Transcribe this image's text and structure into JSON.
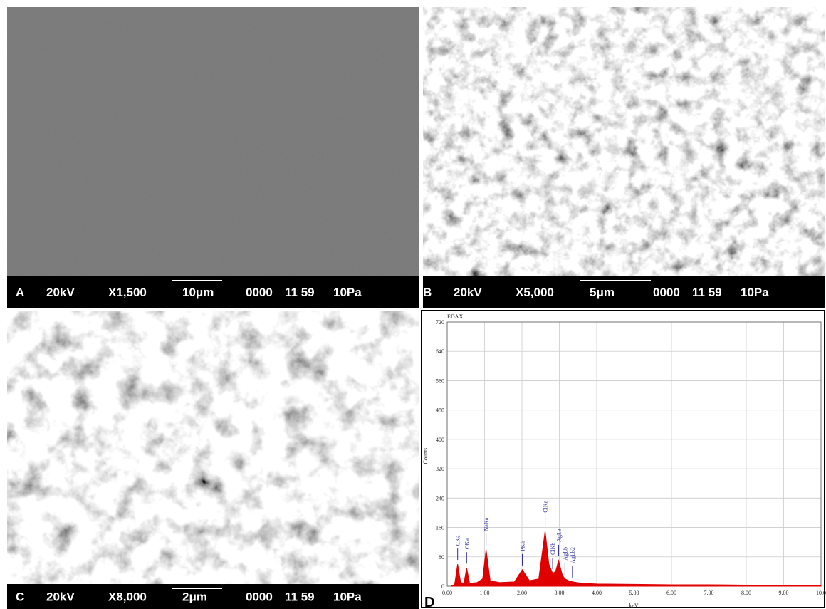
{
  "sem_panels": [
    {
      "label": "A",
      "voltage": "20kV",
      "magnification": "X1,500",
      "scale_bar": "10μm",
      "code": "0000",
      "time": "11 59",
      "pressure": "10Pa"
    },
    {
      "label": "B",
      "voltage": "20kV",
      "magnification": "X5,000",
      "scale_bar": "5μm",
      "code": "0000",
      "time": "11 59",
      "pressure": "10Pa"
    },
    {
      "label": "C",
      "voltage": "20kV",
      "magnification": "X8,000",
      "scale_bar": "2μm",
      "code": "0000",
      "time": "11 59",
      "pressure": "10Pa"
    }
  ],
  "panel_d_label": "D",
  "chart_data": {
    "type": "spectrum",
    "title": "EDAX",
    "xlabel": "keV",
    "ylabel": "Counts",
    "color": "#e00000",
    "label_color": "#2a2aa0",
    "grid": true,
    "xlim": [
      0,
      10
    ],
    "ylim": [
      0,
      720
    ],
    "xticks": [
      {
        "value": 0,
        "label": "0.00"
      },
      {
        "value": 1,
        "label": "1.00"
      },
      {
        "value": 2,
        "label": "2.00"
      },
      {
        "value": 3,
        "label": "3.00"
      },
      {
        "value": 4,
        "label": "4.00"
      },
      {
        "value": 5,
        "label": "5.00"
      },
      {
        "value": 6,
        "label": "6.00"
      },
      {
        "value": 7,
        "label": "7.00"
      },
      {
        "value": 8,
        "label": "8.00"
      },
      {
        "value": 9,
        "label": "9.00"
      },
      {
        "value": 10,
        "label": "10.0"
      }
    ],
    "yticks": [
      0,
      80,
      160,
      240,
      320,
      400,
      480,
      560,
      640,
      720
    ],
    "x": [
      0.1,
      0.2,
      0.28,
      0.36,
      0.45,
      0.52,
      0.6,
      0.8,
      0.95,
      1.04,
      1.15,
      1.4,
      1.8,
      2.01,
      2.2,
      2.45,
      2.62,
      2.72,
      2.82,
      2.9,
      2.98,
      3.08,
      3.15,
      3.25,
      3.35,
      3.6,
      4.0,
      5.0,
      6.0,
      7.0,
      8.0,
      9.0,
      10.0
    ],
    "values": [
      0,
      5,
      60,
      10,
      8,
      50,
      8,
      10,
      20,
      100,
      15,
      10,
      12,
      45,
      15,
      20,
      150,
      60,
      35,
      40,
      70,
      30,
      20,
      15,
      12,
      8,
      6,
      5,
      4,
      4,
      3,
      3,
      2
    ],
    "peaks": [
      {
        "text": "CKa",
        "x": 0.28
      },
      {
        "text": "OKa",
        "x": 0.52
      },
      {
        "text": "NaKa",
        "x": 1.04
      },
      {
        "text": "PKa",
        "x": 2.01
      },
      {
        "text": "ClKa",
        "x": 2.62
      },
      {
        "text": "ClKb",
        "x": 2.82
      },
      {
        "text": "AgLa",
        "x": 2.98
      },
      {
        "text": "AgLb",
        "x": 3.15
      },
      {
        "text": "AgLb2",
        "x": 3.35
      }
    ]
  }
}
